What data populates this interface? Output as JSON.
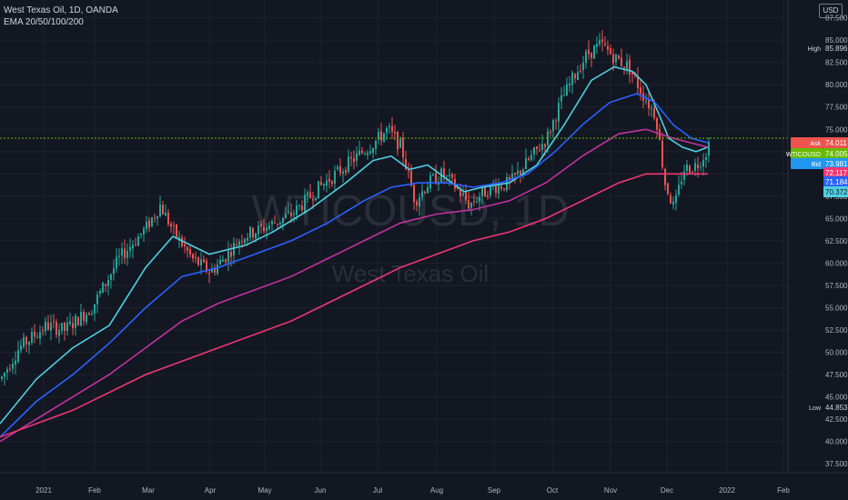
{
  "header": {
    "title": "West Texas Oil, 1D, OANDA",
    "indicator": "EMA 20/50/100/200",
    "currency": "USD"
  },
  "watermark": {
    "symbol": "WTICOUSD, 1D",
    "name": "West Texas Oil"
  },
  "colors": {
    "background": "#131722",
    "grid": "#1e222d",
    "candle_up": "#26a69a",
    "candle_down": "#ef5350",
    "ema20": "#4dd0e1",
    "ema50": "#2962ff",
    "ema100": "#c2329f",
    "ema200": "#f23673",
    "price_line": "#66bb00"
  },
  "chart_data": {
    "type": "candlestick",
    "symbol": "WTICOUSD",
    "ylim": [
      36.5,
      89.5
    ],
    "y_ticks": [
      "37.500",
      "40.000",
      "42.500",
      "45.000",
      "47.500",
      "50.000",
      "52.500",
      "55.000",
      "57.500",
      "60.000",
      "62.500",
      "65.000",
      "67.500",
      "70.000",
      "72.500",
      "75.000",
      "77.500",
      "80.000",
      "82.500",
      "85.000",
      "87.500"
    ],
    "x_ticks": [
      {
        "label": "2021",
        "x": 48
      },
      {
        "label": "Feb",
        "x": 104
      },
      {
        "label": "Mar",
        "x": 163
      },
      {
        "label": "Apr",
        "x": 231
      },
      {
        "label": "May",
        "x": 291
      },
      {
        "label": "Jun",
        "x": 352
      },
      {
        "label": "Jul",
        "x": 415
      },
      {
        "label": "Aug",
        "x": 480
      },
      {
        "label": "Sep",
        "x": 543
      },
      {
        "label": "Oct",
        "x": 607
      },
      {
        "label": "Nov",
        "x": 671
      },
      {
        "label": "Dec",
        "x": 733
      },
      {
        "label": "2022",
        "x": 799
      },
      {
        "label": "Feb",
        "x": 861
      }
    ],
    "price_keys": [
      [
        0,
        47.0
      ],
      [
        20,
        50.5
      ],
      [
        50,
        53.0
      ],
      [
        70,
        52.5
      ],
      [
        100,
        55.0
      ],
      [
        130,
        60.5
      ],
      [
        160,
        64.0
      ],
      [
        175,
        66.5
      ],
      [
        190,
        63.5
      ],
      [
        210,
        60.5
      ],
      [
        230,
        59.0
      ],
      [
        245,
        60.5
      ],
      [
        265,
        63.0
      ],
      [
        290,
        64.0
      ],
      [
        320,
        65.5
      ],
      [
        350,
        68.5
      ],
      [
        380,
        71.0
      ],
      [
        410,
        73.5
      ],
      [
        425,
        75.0
      ],
      [
        440,
        73.0
      ],
      [
        455,
        67.0
      ],
      [
        470,
        69.0
      ],
      [
        485,
        70.0
      ],
      [
        500,
        68.5
      ],
      [
        515,
        66.5
      ],
      [
        525,
        67.5
      ],
      [
        540,
        68.5
      ],
      [
        560,
        69.0
      ],
      [
        580,
        71.5
      ],
      [
        600,
        74.0
      ],
      [
        615,
        78.0
      ],
      [
        630,
        81.0
      ],
      [
        645,
        83.5
      ],
      [
        660,
        84.5
      ],
      [
        675,
        83.0
      ],
      [
        690,
        82.0
      ],
      [
        705,
        79.0
      ],
      [
        720,
        76.5
      ],
      [
        730,
        69.0
      ],
      [
        740,
        66.0
      ],
      [
        750,
        70.5
      ],
      [
        765,
        71.0
      ],
      [
        775,
        72.5
      ],
      [
        780,
        74.0
      ]
    ],
    "ema_series": [
      {
        "name": "EMA 20",
        "color": "#4dd0e1",
        "points": [
          [
            0,
            42.0
          ],
          [
            40,
            47.0
          ],
          [
            80,
            50.5
          ],
          [
            120,
            53.0
          ],
          [
            160,
            59.5
          ],
          [
            190,
            63.0
          ],
          [
            230,
            61.0
          ],
          [
            270,
            62.0
          ],
          [
            300,
            63.5
          ],
          [
            340,
            66.0
          ],
          [
            380,
            69.0
          ],
          [
            410,
            71.5
          ],
          [
            430,
            72.0
          ],
          [
            450,
            70.5
          ],
          [
            470,
            71.0
          ],
          [
            490,
            69.5
          ],
          [
            510,
            68.0
          ],
          [
            530,
            68.5
          ],
          [
            560,
            69.0
          ],
          [
            590,
            71.0
          ],
          [
            620,
            75.5
          ],
          [
            650,
            80.5
          ],
          [
            675,
            82.0
          ],
          [
            695,
            81.5
          ],
          [
            710,
            80.0
          ],
          [
            725,
            76.5
          ],
          [
            735,
            74.0
          ],
          [
            750,
            73.0
          ],
          [
            765,
            72.5
          ],
          [
            778,
            73.0
          ]
        ]
      },
      {
        "name": "EMA 50",
        "color": "#2962ff",
        "points": [
          [
            0,
            40.5
          ],
          [
            40,
            44.5
          ],
          [
            80,
            47.5
          ],
          [
            120,
            51.0
          ],
          [
            160,
            55.0
          ],
          [
            200,
            58.5
          ],
          [
            240,
            59.5
          ],
          [
            280,
            61.0
          ],
          [
            320,
            62.5
          ],
          [
            360,
            64.5
          ],
          [
            400,
            67.0
          ],
          [
            430,
            68.5
          ],
          [
            460,
            69.0
          ],
          [
            490,
            69.0
          ],
          [
            520,
            68.5
          ],
          [
            550,
            69.0
          ],
          [
            580,
            70.0
          ],
          [
            610,
            72.5
          ],
          [
            640,
            75.5
          ],
          [
            670,
            78.0
          ],
          [
            700,
            79.0
          ],
          [
            720,
            78.0
          ],
          [
            740,
            75.5
          ],
          [
            760,
            74.0
          ],
          [
            778,
            73.5
          ]
        ]
      },
      {
        "name": "EMA 100",
        "color": "#c2329f",
        "points": [
          [
            0,
            40.0
          ],
          [
            40,
            42.5
          ],
          [
            80,
            45.0
          ],
          [
            120,
            47.5
          ],
          [
            160,
            50.5
          ],
          [
            200,
            53.5
          ],
          [
            240,
            55.5
          ],
          [
            280,
            57.0
          ],
          [
            320,
            58.5
          ],
          [
            360,
            60.5
          ],
          [
            400,
            62.5
          ],
          [
            440,
            64.5
          ],
          [
            480,
            65.5
          ],
          [
            520,
            66.0
          ],
          [
            560,
            67.0
          ],
          [
            600,
            69.0
          ],
          [
            640,
            72.0
          ],
          [
            680,
            74.5
          ],
          [
            710,
            75.0
          ],
          [
            740,
            74.0
          ],
          [
            778,
            73.0
          ]
        ]
      },
      {
        "name": "EMA 200",
        "color": "#f23673",
        "points": [
          [
            0,
            40.5
          ],
          [
            40,
            42.0
          ],
          [
            80,
            43.5
          ],
          [
            120,
            45.5
          ],
          [
            160,
            47.5
          ],
          [
            200,
            49.0
          ],
          [
            240,
            50.5
          ],
          [
            280,
            52.0
          ],
          [
            320,
            53.5
          ],
          [
            360,
            55.5
          ],
          [
            400,
            57.5
          ],
          [
            440,
            59.5
          ],
          [
            480,
            61.0
          ],
          [
            520,
            62.5
          ],
          [
            560,
            63.5
          ],
          [
            600,
            65.0
          ],
          [
            640,
            67.0
          ],
          [
            680,
            69.0
          ],
          [
            710,
            70.0
          ],
          [
            740,
            70.0
          ],
          [
            778,
            70.0
          ]
        ]
      }
    ],
    "labels": {
      "high": {
        "text": "High",
        "value": "85.896"
      },
      "low": {
        "text": "Low",
        "value": "44.853"
      },
      "ask": {
        "text": "Ask",
        "value": "74.011"
      },
      "symbol": {
        "text": "WTICOUSD",
        "value": "74.005"
      },
      "bid": {
        "text": "Bid",
        "value": "73.981"
      },
      "ema100_val": "72.117",
      "ema50_val": "71.184",
      "ema200_val": "70.372"
    },
    "current_price": 74.005
  }
}
